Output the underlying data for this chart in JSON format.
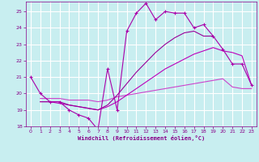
{
  "xlabel": "Windchill (Refroidissement éolien,°C)",
  "bg_color": "#c8eef0",
  "grid_color": "#ffffff",
  "c_zigzag": "#aa00aa",
  "c_diag1": "#990099",
  "c_diag2": "#bb00bb",
  "c_flat": "#cc44cc",
  "xlim": [
    -0.5,
    23.5
  ],
  "ylim": [
    18,
    25.6
  ],
  "yticks": [
    18,
    19,
    20,
    21,
    22,
    23,
    24,
    25
  ],
  "xticks": [
    0,
    1,
    2,
    3,
    4,
    5,
    6,
    7,
    8,
    9,
    10,
    11,
    12,
    13,
    14,
    15,
    16,
    17,
    18,
    19,
    20,
    21,
    22,
    23
  ],
  "zigzag_x": [
    0,
    1,
    2,
    3,
    4,
    5,
    6,
    7,
    8,
    9,
    10,
    11,
    12,
    13,
    14,
    15,
    16,
    17,
    18,
    19,
    20,
    21,
    22,
    23
  ],
  "zigzag_y": [
    21.0,
    20.0,
    19.5,
    19.5,
    19.0,
    18.7,
    18.5,
    17.8,
    21.5,
    19.0,
    23.8,
    24.9,
    25.5,
    24.5,
    25.0,
    24.9,
    24.9,
    24.0,
    24.2,
    23.5,
    22.7,
    21.8,
    21.8,
    20.5
  ],
  "diag1_x": [
    1,
    2,
    3,
    4,
    5,
    6,
    7,
    8,
    9,
    10,
    11,
    12,
    13,
    14,
    15,
    16,
    17,
    18,
    19
  ],
  "diag1_y": [
    19.5,
    19.5,
    19.5,
    19.3,
    19.2,
    19.1,
    19.0,
    19.3,
    19.9,
    20.6,
    21.3,
    21.9,
    22.5,
    23.0,
    23.4,
    23.7,
    23.8,
    23.5,
    23.5
  ],
  "diag2_x": [
    1,
    2,
    3,
    4,
    5,
    6,
    7,
    8,
    9,
    10,
    11,
    12,
    13,
    14,
    15,
    16,
    17,
    18,
    19,
    20,
    21,
    22,
    23
  ],
  "diag2_y": [
    19.5,
    19.5,
    19.4,
    19.3,
    19.2,
    19.1,
    19.0,
    19.2,
    19.5,
    19.9,
    20.3,
    20.7,
    21.1,
    21.5,
    21.8,
    22.1,
    22.4,
    22.6,
    22.8,
    22.6,
    22.5,
    22.3,
    20.5
  ],
  "flat_x": [
    1,
    2,
    3,
    4,
    5,
    6,
    7,
    8,
    9,
    10,
    11,
    12,
    13,
    14,
    15,
    16,
    17,
    18,
    19,
    20,
    21,
    22,
    23
  ],
  "flat_y": [
    19.7,
    19.7,
    19.7,
    19.6,
    19.6,
    19.6,
    19.5,
    19.6,
    19.8,
    19.9,
    20.0,
    20.1,
    20.2,
    20.3,
    20.4,
    20.5,
    20.6,
    20.7,
    20.8,
    20.9,
    20.4,
    20.3,
    20.3
  ]
}
